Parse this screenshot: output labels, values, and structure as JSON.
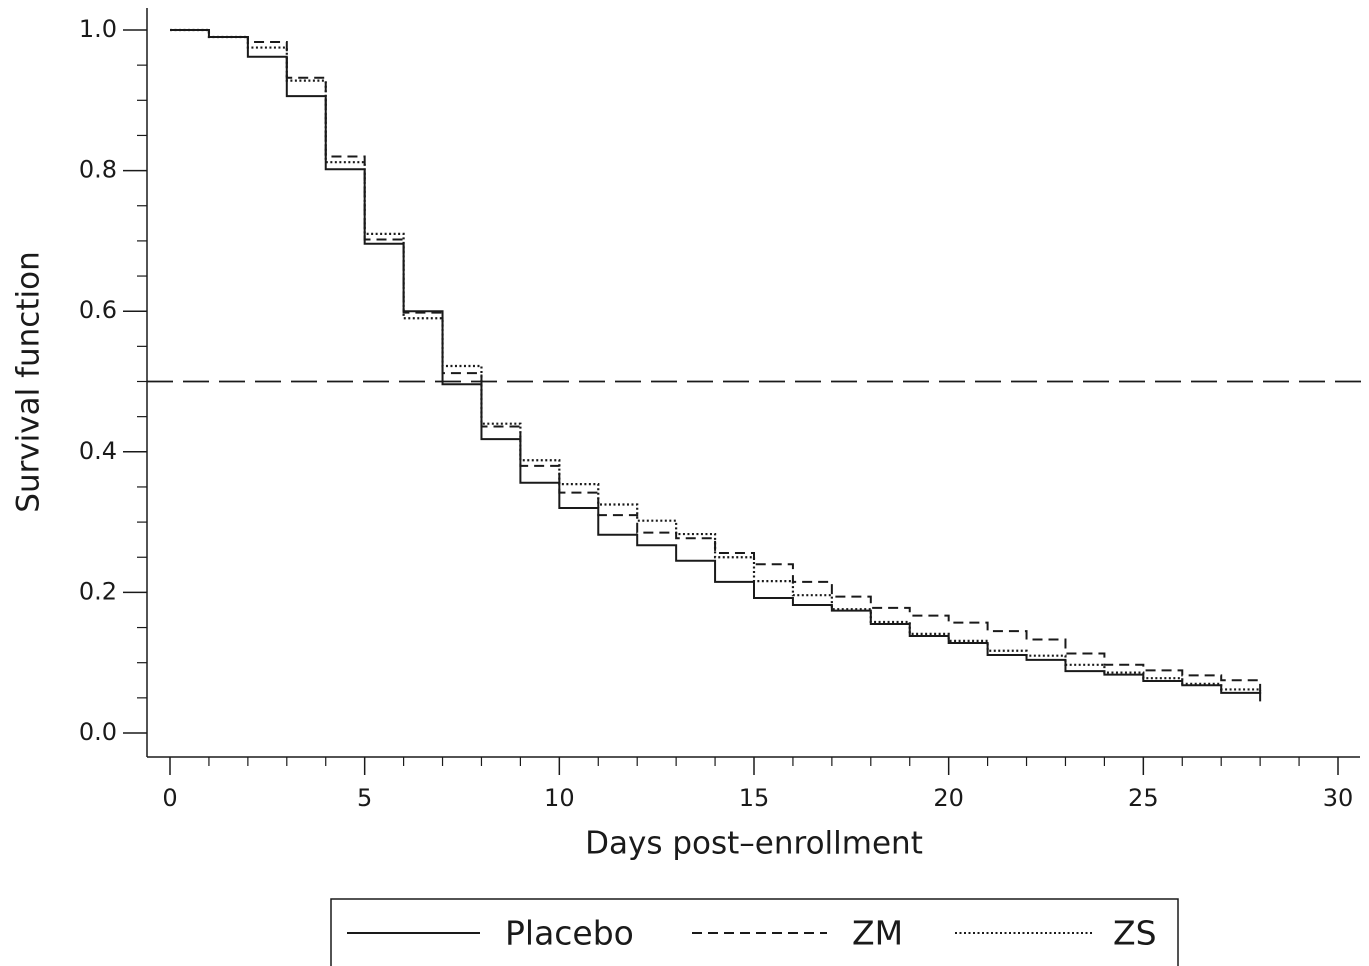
{
  "chart_data": {
    "type": "step",
    "xlabel": "Days post–enrollment",
    "ylabel": "Survival function",
    "x": [
      0,
      1,
      2,
      3,
      4,
      5,
      6,
      7,
      8,
      9,
      10,
      11,
      12,
      13,
      14,
      15,
      16,
      17,
      18,
      19,
      20,
      21,
      22,
      23,
      24,
      25,
      26,
      27,
      28
    ],
    "series": [
      {
        "name": "Placebo",
        "color": "#1a1a1a",
        "dash": "solid",
        "values": [
          1.0,
          0.99,
          0.962,
          0.906,
          0.802,
          0.696,
          0.6,
          0.496,
          0.418,
          0.356,
          0.32,
          0.282,
          0.267,
          0.245,
          0.215,
          0.192,
          0.182,
          0.174,
          0.155,
          0.138,
          0.128,
          0.111,
          0.104,
          0.088,
          0.083,
          0.074,
          0.068,
          0.057,
          0.045
        ]
      },
      {
        "name": "ZM",
        "color": "#1a1a1a",
        "dash": "dashed",
        "values": [
          1.0,
          0.99,
          0.983,
          0.932,
          0.82,
          0.702,
          0.598,
          0.512,
          0.436,
          0.38,
          0.342,
          0.31,
          0.285,
          0.277,
          0.256,
          0.24,
          0.215,
          0.194,
          0.178,
          0.167,
          0.157,
          0.145,
          0.133,
          0.113,
          0.097,
          0.089,
          0.082,
          0.075,
          0.055
        ]
      },
      {
        "name": "ZS",
        "color": "#1a1a1a",
        "dash": "dotted",
        "values": [
          1.0,
          0.99,
          0.975,
          0.928,
          0.812,
          0.71,
          0.59,
          0.522,
          0.44,
          0.388,
          0.354,
          0.325,
          0.302,
          0.283,
          0.25,
          0.216,
          0.196,
          0.176,
          0.158,
          0.141,
          0.131,
          0.117,
          0.11,
          0.097,
          0.086,
          0.078,
          0.07,
          0.062,
          0.06
        ]
      }
    ],
    "hline": 0.5,
    "xlim": [
      0,
      30
    ],
    "ylim": [
      0,
      1
    ],
    "xticks": [
      0,
      5,
      10,
      15,
      20,
      25,
      30
    ],
    "yticks": [
      {
        "value": 0,
        "label": "0.0"
      },
      {
        "value": 0.2,
        "label": "0.2"
      },
      {
        "value": 0.4,
        "label": "0.4"
      },
      {
        "value": 0.6,
        "label": "0.6"
      },
      {
        "value": 0.8,
        "label": "0.8"
      },
      {
        "value": 1,
        "label": "1.0"
      }
    ],
    "minor_xticks": [
      1,
      2,
      3,
      4,
      6,
      7,
      8,
      9,
      11,
      12,
      13,
      14,
      16,
      17,
      18,
      19,
      21,
      22,
      23,
      24,
      26,
      27,
      28,
      29
    ],
    "minor_yticks": [
      0.05,
      0.1,
      0.15,
      0.25,
      0.3,
      0.35,
      0.45,
      0.5,
      0.55,
      0.65,
      0.7,
      0.75,
      0.85,
      0.9,
      0.95
    ],
    "legend": "bottom"
  }
}
